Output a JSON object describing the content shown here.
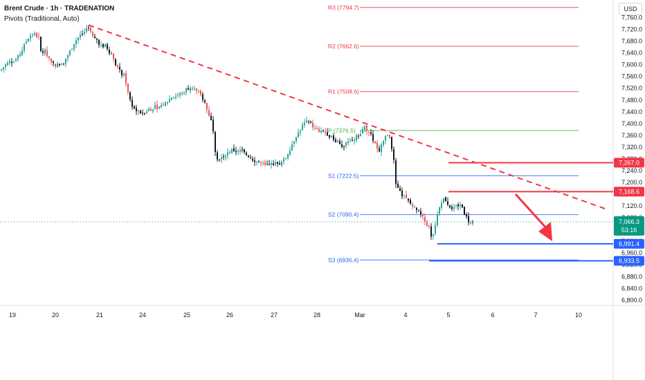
{
  "header": {
    "title": "Brent Crude · 1h · TRADENATION",
    "indicator": "Pivots (Traditional, Auto)"
  },
  "currency_button": "USD",
  "colors": {
    "up": "#26a69a",
    "down": "#ef5350",
    "candle_dark": "#131722",
    "pivot_resistance": "#f23645",
    "pivot_p": "#4caf50",
    "pivot_support": "#2962ff",
    "level_red": "#f23645",
    "level_blue": "#2962ff",
    "current_price": "#089981"
  },
  "chart_data": {
    "type": "candlestick",
    "y_axis": {
      "ylim": [
        6782,
        7820
      ],
      "ticks": [
        "6,800.0",
        "6,840.0",
        "6,880.0",
        "6,920.0",
        "6,960.0",
        "7,000.0",
        "7,040.0",
        "7,080.0",
        "7,120.0",
        "7,160.0",
        "7,200.0",
        "7,240.0",
        "7,280.0",
        "7,320.0",
        "7,360.0",
        "7,400.0",
        "7,440.0",
        "7,480.0",
        "7,520.0",
        "7,560.0",
        "7,600.0",
        "7,640.0",
        "7,680.0",
        "7,720.0",
        "7,760.0"
      ],
      "tick_values": [
        6800,
        6840,
        6880,
        6920,
        6960,
        7000,
        7040,
        7080,
        7120,
        7160,
        7200,
        7240,
        7280,
        7320,
        7360,
        7400,
        7440,
        7480,
        7520,
        7560,
        7600,
        7640,
        7680,
        7720,
        7760
      ]
    },
    "x_axis": {
      "ticks": [
        "19",
        "20",
        "21",
        "24",
        "25",
        "26",
        "27",
        "28",
        "Mar",
        "4",
        "5",
        "6",
        "7",
        "10"
      ]
    },
    "close_path": [
      [
        0,
        7580
      ],
      [
        4,
        7590
      ],
      [
        8,
        7600
      ],
      [
        14,
        7610
      ],
      [
        20,
        7612
      ],
      [
        26,
        7625
      ],
      [
        32,
        7650
      ],
      [
        36,
        7670
      ],
      [
        40,
        7690
      ],
      [
        44,
        7700
      ],
      [
        48,
        7705
      ],
      [
        52,
        7700
      ],
      [
        56,
        7690
      ],
      [
        58,
        7650
      ],
      [
        60,
        7640
      ],
      [
        64,
        7650
      ],
      [
        68,
        7630
      ],
      [
        72,
        7620
      ],
      [
        76,
        7605
      ],
      [
        80,
        7600
      ],
      [
        84,
        7598
      ],
      [
        88,
        7605
      ],
      [
        92,
        7610
      ],
      [
        96,
        7625
      ],
      [
        100,
        7640
      ],
      [
        104,
        7660
      ],
      [
        108,
        7680
      ],
      [
        112,
        7690
      ],
      [
        116,
        7700
      ],
      [
        120,
        7705
      ],
      [
        124,
        7712
      ],
      [
        128,
        7730
      ],
      [
        130,
        7720
      ],
      [
        132,
        7700
      ],
      [
        136,
        7690
      ],
      [
        140,
        7685
      ],
      [
        144,
        7670
      ],
      [
        148,
        7660
      ],
      [
        152,
        7665
      ],
      [
        156,
        7650
      ],
      [
        160,
        7640
      ],
      [
        164,
        7620
      ],
      [
        168,
        7600
      ],
      [
        172,
        7580
      ],
      [
        176,
        7570
      ],
      [
        180,
        7560
      ],
      [
        182,
        7540
      ],
      [
        184,
        7520
      ],
      [
        186,
        7500
      ],
      [
        188,
        7480
      ],
      [
        190,
        7470
      ],
      [
        192,
        7455
      ],
      [
        196,
        7445
      ],
      [
        200,
        7440
      ],
      [
        204,
        7435
      ],
      [
        208,
        7440
      ],
      [
        212,
        7445
      ],
      [
        216,
        7450
      ],
      [
        220,
        7450
      ],
      [
        224,
        7460
      ],
      [
        228,
        7455
      ],
      [
        232,
        7460
      ],
      [
        236,
        7465
      ],
      [
        240,
        7470
      ],
      [
        244,
        7480
      ],
      [
        248,
        7490
      ],
      [
        252,
        7490
      ],
      [
        256,
        7495
      ],
      [
        260,
        7500
      ],
      [
        264,
        7505
      ],
      [
        268,
        7515
      ],
      [
        272,
        7520
      ],
      [
        276,
        7525
      ],
      [
        280,
        7520
      ],
      [
        284,
        7510
      ],
      [
        288,
        7500
      ],
      [
        292,
        7490
      ],
      [
        296,
        7470
      ],
      [
        300,
        7440
      ],
      [
        304,
        7420
      ],
      [
        308,
        7380
      ],
      [
        310,
        7330
      ],
      [
        312,
        7290
      ],
      [
        316,
        7280
      ],
      [
        320,
        7285
      ],
      [
        324,
        7290
      ],
      [
        328,
        7300
      ],
      [
        332,
        7305
      ],
      [
        336,
        7310
      ],
      [
        340,
        7305
      ],
      [
        344,
        7308
      ],
      [
        348,
        7310
      ],
      [
        352,
        7300
      ],
      [
        356,
        7295
      ],
      [
        360,
        7290
      ],
      [
        364,
        7280
      ],
      [
        368,
        7275
      ],
      [
        372,
        7270
      ],
      [
        376,
        7265
      ],
      [
        380,
        7260
      ],
      [
        384,
        7255
      ],
      [
        388,
        7258
      ],
      [
        392,
        7262
      ],
      [
        396,
        7265
      ],
      [
        400,
        7262
      ],
      [
        404,
        7265
      ],
      [
        408,
        7270
      ],
      [
        412,
        7280
      ],
      [
        416,
        7300
      ],
      [
        420,
        7320
      ],
      [
        424,
        7340
      ],
      [
        428,
        7360
      ],
      [
        432,
        7370
      ],
      [
        436,
        7390
      ],
      [
        440,
        7400
      ],
      [
        444,
        7405
      ],
      [
        448,
        7400
      ],
      [
        452,
        7390
      ],
      [
        456,
        7380
      ],
      [
        460,
        7375
      ],
      [
        464,
        7370
      ],
      [
        468,
        7372
      ],
      [
        472,
        7368
      ],
      [
        476,
        7360
      ],
      [
        480,
        7350
      ],
      [
        484,
        7345
      ],
      [
        488,
        7340
      ],
      [
        492,
        7330
      ],
      [
        496,
        7320
      ],
      [
        500,
        7330
      ],
      [
        504,
        7340
      ],
      [
        508,
        7345
      ],
      [
        512,
        7350
      ],
      [
        516,
        7355
      ],
      [
        520,
        7365
      ],
      [
        524,
        7380
      ],
      [
        526,
        7395
      ],
      [
        528,
        7385
      ],
      [
        532,
        7375
      ],
      [
        536,
        7360
      ],
      [
        540,
        7340
      ],
      [
        544,
        7320
      ],
      [
        548,
        7300
      ],
      [
        552,
        7330
      ],
      [
        556,
        7350
      ],
      [
        560,
        7365
      ],
      [
        564,
        7355
      ],
      [
        566,
        7320
      ],
      [
        568,
        7290
      ],
      [
        570,
        7250
      ],
      [
        572,
        7190
      ],
      [
        576,
        7170
      ],
      [
        580,
        7160
      ],
      [
        584,
        7150
      ],
      [
        588,
        7140
      ],
      [
        592,
        7130
      ],
      [
        596,
        7120
      ],
      [
        600,
        7110
      ],
      [
        604,
        7100
      ],
      [
        608,
        7090
      ],
      [
        612,
        7075
      ],
      [
        616,
        7060
      ],
      [
        620,
        7050
      ],
      [
        624,
        7000
      ],
      [
        628,
        7050
      ],
      [
        632,
        7090
      ],
      [
        636,
        7130
      ],
      [
        640,
        7145
      ],
      [
        644,
        7140
      ],
      [
        648,
        7125
      ],
      [
        652,
        7115
      ],
      [
        656,
        7110
      ],
      [
        660,
        7120
      ],
      [
        664,
        7125
      ],
      [
        668,
        7115
      ],
      [
        672,
        7090
      ],
      [
        676,
        7070
      ],
      [
        680,
        7060
      ],
      [
        684,
        7066
      ]
    ],
    "pivots": [
      {
        "label": "R3 (7794.7)",
        "value": 7794.7,
        "kind": "resistance"
      },
      {
        "label": "R2 (7662.6)",
        "value": 7662.6,
        "kind": "resistance"
      },
      {
        "label": "R1 (7508.6)",
        "value": 7508.6,
        "kind": "resistance"
      },
      {
        "label": "P (7376.5)",
        "value": 7376.5,
        "kind": "p"
      },
      {
        "label": "S1 (7222.5)",
        "value": 7222.5,
        "kind": "support"
      },
      {
        "label": "S2 (7090.4)",
        "value": 7090.4,
        "kind": "support"
      },
      {
        "label": "S3 (6936.4)",
        "value": 6936.4,
        "kind": "support"
      }
    ],
    "levels": [
      {
        "value": 7267.0,
        "label": "7,267.0",
        "color": "red"
      },
      {
        "value": 7168.6,
        "label": "7,168.6",
        "color": "red"
      },
      {
        "value": 6991.4,
        "label": "6,991.4",
        "color": "blue"
      },
      {
        "value": 6933.5,
        "label": "6,933.5",
        "color": "blue"
      }
    ],
    "trendline": {
      "from": [
        128,
        7735
      ],
      "to": [
        875,
        7110
      ]
    },
    "arrow": {
      "from": [
        745,
        7160
      ],
      "to": [
        798,
        7000
      ]
    },
    "current_price": {
      "value": 7066.3,
      "label": "7,066.3",
      "countdown": "53:16"
    }
  }
}
